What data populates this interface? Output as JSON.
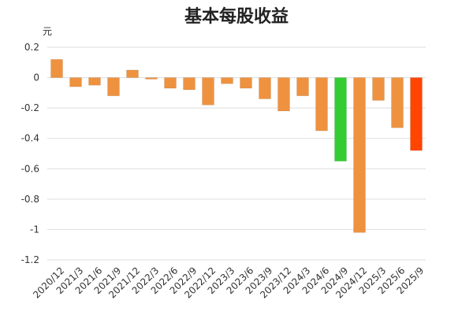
{
  "chart_data": {
    "type": "bar",
    "title": "基本每股收益",
    "unit": "元",
    "categories": [
      "2020/12",
      "2021/3",
      "2021/6",
      "2021/9",
      "2021/12",
      "2022/3",
      "2022/6",
      "2022/9",
      "2022/12",
      "2023/3",
      "2023/6",
      "2023/9",
      "2023/12",
      "2024/3",
      "2024/6",
      "2024/9",
      "2024/12",
      "2025/3",
      "2025/6",
      "2025/9"
    ],
    "values": [
      0.12,
      -0.06,
      -0.05,
      -0.12,
      0.05,
      -0.01,
      -0.07,
      -0.08,
      -0.18,
      -0.04,
      -0.07,
      -0.14,
      -0.22,
      -0.12,
      -0.35,
      -0.55,
      -1.02,
      -0.15,
      -0.33,
      -0.48
    ],
    "colors": [
      "#EE9240",
      "#EE9240",
      "#EE9240",
      "#EE9240",
      "#EE9240",
      "#EE9240",
      "#EE9240",
      "#EE9240",
      "#EE9240",
      "#EE9240",
      "#EE9240",
      "#EE9240",
      "#EE9240",
      "#EE9240",
      "#EE9240",
      "#33CC33",
      "#EE9240",
      "#EE9240",
      "#EE9240",
      "#FF4500"
    ],
    "ylim": [
      -1.2,
      0.2
    ],
    "yticks": [
      0.2,
      0,
      -0.2,
      -0.4,
      -0.6,
      -0.8,
      -1,
      -1.2
    ],
    "grid": true,
    "legend": "none"
  }
}
